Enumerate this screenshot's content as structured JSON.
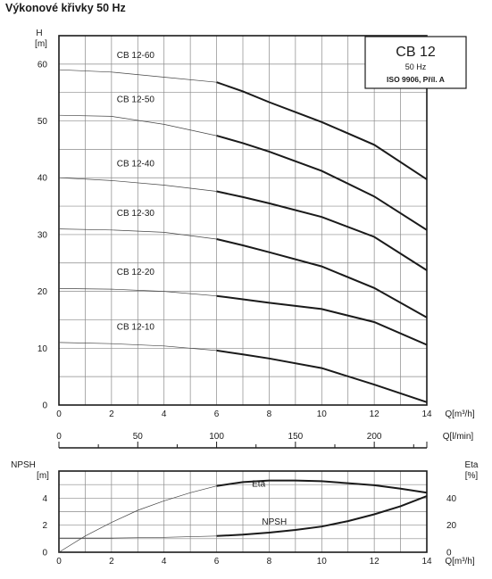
{
  "title": "Výkonové křivky 50 Hz",
  "chart_data": [
    {
      "type": "line",
      "name": "Q-H curves",
      "xlabel": "Q[m³/h]",
      "ylabel_top": "H",
      "ylabel_unit": "[m]",
      "xlim": [
        0,
        14
      ],
      "ylim": [
        0,
        65
      ],
      "x_ticks": [
        "0",
        "2",
        "4",
        "6",
        "8",
        "10",
        "12",
        "14"
      ],
      "y_ticks": [
        "0",
        "10",
        "20",
        "30",
        "40",
        "50",
        "60"
      ],
      "grid": true,
      "legend_box": {
        "title": "CB 12",
        "line1": "50 Hz",
        "line2": "ISO 9906, Příl. A"
      },
      "thin_until_x": 6,
      "series": [
        {
          "name": "CB 12-60",
          "x": [
            0,
            2,
            4,
            6,
            7,
            8,
            10,
            12,
            14
          ],
          "y": [
            59,
            58.6,
            57.7,
            56.8,
            55.2,
            53.3,
            49.8,
            45.8,
            39.7
          ]
        },
        {
          "name": "CB 12-50",
          "x": [
            0,
            2,
            4,
            6,
            7,
            8,
            10,
            12,
            14
          ],
          "y": [
            51,
            50.8,
            49.4,
            47.4,
            46.1,
            44.6,
            41.2,
            36.7,
            30.8
          ]
        },
        {
          "name": "CB 12-40",
          "x": [
            0,
            2,
            4,
            6,
            7,
            8,
            10,
            12,
            14
          ],
          "y": [
            40,
            39.5,
            38.7,
            37.6,
            36.6,
            35.5,
            33.1,
            29.6,
            23.7
          ]
        },
        {
          "name": "CB 12-30",
          "x": [
            0,
            2,
            4,
            6,
            7,
            8,
            10,
            12,
            14
          ],
          "y": [
            31,
            30.8,
            30.4,
            29.2,
            28.1,
            26.9,
            24.4,
            20.6,
            15.4
          ]
        },
        {
          "name": "CB 12-20",
          "x": [
            0,
            2,
            4,
            6,
            7,
            8,
            10,
            12,
            14
          ],
          "y": [
            20.5,
            20.4,
            20,
            19.2,
            18.6,
            18,
            16.9,
            14.6,
            10.6
          ]
        },
        {
          "name": "CB 12-10",
          "x": [
            0,
            2,
            4,
            6,
            7,
            8,
            10,
            12,
            14
          ],
          "y": [
            11,
            10.8,
            10.4,
            9.6,
            8.9,
            8.2,
            6.5,
            3.6,
            0.5
          ]
        }
      ]
    },
    {
      "type": "axis",
      "name": "Q[l/min] scale",
      "xlabel": "Q[l/min]",
      "xlim_lpm": [
        0,
        233.33
      ],
      "x_ticks": [
        "0",
        "50",
        "100",
        "150",
        "200"
      ],
      "x_tick_values": [
        0,
        50,
        100,
        150,
        200
      ]
    },
    {
      "type": "line",
      "name": "NPSH / Eta",
      "xlabel": "Q[m³/h]",
      "ylabel_left_top": "NPSH",
      "ylabel_left_unit": "[m]",
      "ylabel_right_top": "Eta",
      "ylabel_right_unit": "[%]",
      "xlim": [
        0,
        14
      ],
      "ylim_left": [
        0,
        6
      ],
      "ylim_right": [
        0,
        60
      ],
      "x_ticks": [
        "0",
        "2",
        "4",
        "6",
        "8",
        "10",
        "12",
        "14"
      ],
      "y_ticks_left": [
        "0",
        "2",
        "4"
      ],
      "y_ticks_right": [
        "0",
        "20",
        "40"
      ],
      "grid": true,
      "series": [
        {
          "name": "Eta",
          "axis": "right",
          "thin_until_x": 6,
          "x": [
            0,
            1,
            2,
            3,
            4,
            5,
            6,
            7,
            8,
            9,
            10,
            11,
            12,
            13,
            14
          ],
          "y": [
            0,
            12,
            22,
            31,
            38,
            44,
            49,
            51.8,
            53,
            53,
            52.5,
            51,
            49.5,
            47,
            44
          ]
        },
        {
          "name": "NPSH",
          "axis": "left",
          "thin_until_x": 6,
          "x": [
            0,
            2,
            4,
            6,
            7,
            8,
            9,
            10,
            11,
            12,
            13,
            14
          ],
          "y": [
            1.05,
            1.05,
            1.1,
            1.2,
            1.3,
            1.45,
            1.65,
            1.9,
            2.3,
            2.8,
            3.4,
            4.15
          ]
        }
      ]
    }
  ]
}
